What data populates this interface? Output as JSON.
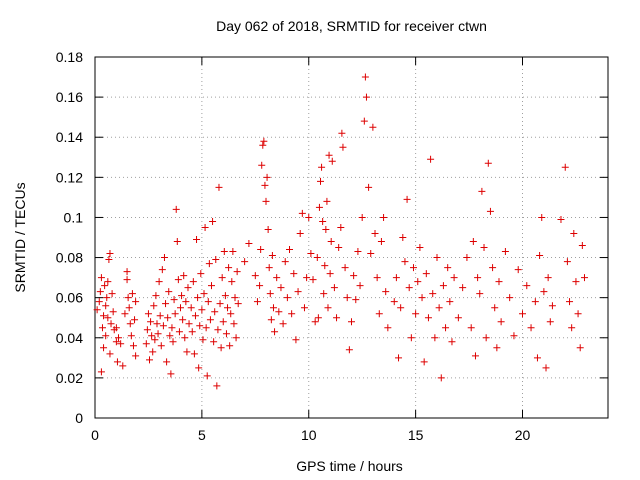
{
  "chart_data": {
    "type": "scatter",
    "title": "Day 062 of 2018, SRMTID for receiver ctwn",
    "xlabel": "GPS time / hours",
    "ylabel": "SRMTID / TECUs",
    "xlim": [
      0,
      24
    ],
    "ylim": [
      0,
      0.18
    ],
    "xticks": [
      0,
      5,
      10,
      15,
      20
    ],
    "yticks": [
      0,
      0.02,
      0.04,
      0.06,
      0.08,
      0.1,
      0.12,
      0.14,
      0.16,
      0.18
    ],
    "ytick_labels": [
      "0",
      "0.02",
      "0.04",
      "0.06",
      "0.08",
      "0.1",
      "0.12",
      "0.14",
      "0.16",
      "0.18"
    ],
    "xtick_labels": [
      "0",
      "5",
      "10",
      "15",
      "20"
    ],
    "grid": true,
    "marker": "+",
    "series": [
      {
        "name": "SRMTID",
        "color": "#dd0000",
        "points": [
          [
            0.1,
            0.054
          ],
          [
            0.2,
            0.058
          ],
          [
            0.25,
            0.063
          ],
          [
            0.3,
            0.07
          ],
          [
            0.3,
            0.023
          ],
          [
            0.35,
            0.045
          ],
          [
            0.4,
            0.051
          ],
          [
            0.4,
            0.035
          ],
          [
            0.45,
            0.066
          ],
          [
            0.5,
            0.041
          ],
          [
            0.5,
            0.056
          ],
          [
            0.55,
            0.06
          ],
          [
            0.6,
            0.05
          ],
          [
            0.6,
            0.068
          ],
          [
            0.65,
            0.079
          ],
          [
            0.7,
            0.082
          ],
          [
            0.7,
            0.032
          ],
          [
            0.75,
            0.047
          ],
          [
            0.8,
            0.062
          ],
          [
            0.85,
            0.053
          ],
          [
            0.9,
            0.044
          ],
          [
            1.0,
            0.038
          ],
          [
            1.0,
            0.045
          ],
          [
            1.05,
            0.028
          ],
          [
            1.1,
            0.04
          ],
          [
            1.2,
            0.037
          ],
          [
            1.3,
            0.026
          ],
          [
            1.4,
            0.052
          ],
          [
            1.5,
            0.069
          ],
          [
            1.5,
            0.073
          ],
          [
            1.55,
            0.06
          ],
          [
            1.6,
            0.055
          ],
          [
            1.65,
            0.047
          ],
          [
            1.7,
            0.041
          ],
          [
            1.75,
            0.062
          ],
          [
            1.8,
            0.036
          ],
          [
            1.85,
            0.049
          ],
          [
            1.9,
            0.058
          ],
          [
            1.9,
            0.031
          ],
          [
            2.4,
            0.037
          ],
          [
            2.45,
            0.044
          ],
          [
            2.5,
            0.052
          ],
          [
            2.55,
            0.029
          ],
          [
            2.6,
            0.048
          ],
          [
            2.65,
            0.041
          ],
          [
            2.7,
            0.033
          ],
          [
            2.75,
            0.056
          ],
          [
            2.8,
            0.039
          ],
          [
            2.85,
            0.061
          ],
          [
            2.9,
            0.047
          ],
          [
            2.95,
            0.042
          ],
          [
            3.0,
            0.068
          ],
          [
            3.05,
            0.051
          ],
          [
            3.1,
            0.036
          ],
          [
            3.15,
            0.074
          ],
          [
            3.2,
            0.046
          ],
          [
            3.25,
            0.08
          ],
          [
            3.3,
            0.057
          ],
          [
            3.35,
            0.028
          ],
          [
            3.4,
            0.05
          ],
          [
            3.45,
            0.063
          ],
          [
            3.5,
            0.041
          ],
          [
            3.55,
            0.022
          ],
          [
            3.6,
            0.045
          ],
          [
            3.65,
            0.038
          ],
          [
            3.7,
            0.059
          ],
          [
            3.75,
            0.052
          ],
          [
            3.8,
            0.104
          ],
          [
            3.85,
            0.088
          ],
          [
            3.9,
            0.069
          ],
          [
            3.95,
            0.043
          ],
          [
            4.0,
            0.055
          ],
          [
            4.05,
            0.061
          ],
          [
            4.1,
            0.049
          ],
          [
            4.15,
            0.071
          ],
          [
            4.2,
            0.04
          ],
          [
            4.25,
            0.058
          ],
          [
            4.3,
            0.033
          ],
          [
            4.35,
            0.065
          ],
          [
            4.4,
            0.047
          ],
          [
            4.5,
            0.055
          ],
          [
            4.55,
            0.043
          ],
          [
            4.6,
            0.068
          ],
          [
            4.65,
            0.032
          ],
          [
            4.7,
            0.051
          ],
          [
            4.75,
            0.089
          ],
          [
            4.8,
            0.06
          ],
          [
            4.85,
            0.025
          ],
          [
            4.9,
            0.046
          ],
          [
            4.95,
            0.072
          ],
          [
            5.0,
            0.054
          ],
          [
            5.05,
            0.039
          ],
          [
            5.1,
            0.062
          ],
          [
            5.15,
            0.095
          ],
          [
            5.2,
            0.045
          ],
          [
            5.25,
            0.021
          ],
          [
            5.3,
            0.058
          ],
          [
            5.35,
            0.077
          ],
          [
            5.4,
            0.049
          ],
          [
            5.45,
            0.066
          ],
          [
            5.5,
            0.098
          ],
          [
            5.55,
            0.038
          ],
          [
            5.6,
            0.053
          ],
          [
            5.65,
            0.079
          ],
          [
            5.7,
            0.016
          ],
          [
            5.75,
            0.044
          ],
          [
            5.8,
            0.115
          ],
          [
            5.85,
            0.057
          ],
          [
            5.9,
            0.035
          ],
          [
            5.95,
            0.07
          ],
          [
            6.0,
            0.048
          ],
          [
            6.05,
            0.083
          ],
          [
            6.1,
            0.061
          ],
          [
            6.15,
            0.042
          ],
          [
            6.2,
            0.055
          ],
          [
            6.25,
            0.075
          ],
          [
            6.3,
            0.036
          ],
          [
            6.35,
            0.052
          ],
          [
            6.4,
            0.068
          ],
          [
            6.45,
            0.083
          ],
          [
            6.5,
            0.047
          ],
          [
            6.55,
            0.06
          ],
          [
            6.6,
            0.04
          ],
          [
            6.65,
            0.073
          ],
          [
            6.7,
            0.057
          ],
          [
            7.0,
            0.078
          ],
          [
            7.2,
            0.087
          ],
          [
            7.5,
            0.071
          ],
          [
            7.6,
            0.058
          ],
          [
            7.7,
            0.066
          ],
          [
            7.75,
            0.084
          ],
          [
            7.8,
            0.126
          ],
          [
            7.85,
            0.136
          ],
          [
            7.9,
            0.138
          ],
          [
            7.95,
            0.116
          ],
          [
            8.0,
            0.108
          ],
          [
            8.05,
            0.12
          ],
          [
            8.1,
            0.094
          ],
          [
            8.15,
            0.075
          ],
          [
            8.2,
            0.062
          ],
          [
            8.25,
            0.049
          ],
          [
            8.3,
            0.081
          ],
          [
            8.35,
            0.055
          ],
          [
            8.4,
            0.043
          ],
          [
            8.5,
            0.07
          ],
          [
            8.6,
            0.053
          ],
          [
            8.7,
            0.065
          ],
          [
            8.8,
            0.047
          ],
          [
            8.9,
            0.078
          ],
          [
            9.0,
            0.06
          ],
          [
            9.1,
            0.084
          ],
          [
            9.2,
            0.052
          ],
          [
            9.3,
            0.072
          ],
          [
            9.4,
            0.039
          ],
          [
            9.5,
            0.063
          ],
          [
            9.6,
            0.092
          ],
          [
            9.7,
            0.102
          ],
          [
            9.8,
            0.055
          ],
          [
            9.9,
            0.07
          ],
          [
            10.0,
            0.1
          ],
          [
            10.1,
            0.082
          ],
          [
            10.2,
            0.069
          ],
          [
            10.3,
            0.048
          ],
          [
            10.4,
            0.08
          ],
          [
            10.45,
            0.05
          ],
          [
            10.5,
            0.105
          ],
          [
            10.55,
            0.118
          ],
          [
            10.6,
            0.125
          ],
          [
            10.65,
            0.098
          ],
          [
            10.7,
            0.062
          ],
          [
            10.75,
            0.076
          ],
          [
            10.8,
            0.094
          ],
          [
            10.85,
            0.108
          ],
          [
            10.9,
            0.055
          ],
          [
            10.95,
            0.131
          ],
          [
            11.0,
            0.072
          ],
          [
            11.05,
            0.088
          ],
          [
            11.1,
            0.128
          ],
          [
            11.2,
            0.065
          ],
          [
            11.3,
            0.05
          ],
          [
            11.4,
            0.085
          ],
          [
            11.5,
            0.095
          ],
          [
            11.55,
            0.142
          ],
          [
            11.6,
            0.135
          ],
          [
            11.7,
            0.075
          ],
          [
            11.8,
            0.06
          ],
          [
            11.9,
            0.034
          ],
          [
            12.0,
            0.048
          ],
          [
            12.1,
            0.071
          ],
          [
            12.2,
            0.059
          ],
          [
            12.3,
            0.083
          ],
          [
            12.4,
            0.066
          ],
          [
            12.5,
            0.1
          ],
          [
            12.6,
            0.148
          ],
          [
            12.65,
            0.17
          ],
          [
            12.7,
            0.16
          ],
          [
            12.8,
            0.115
          ],
          [
            12.9,
            0.082
          ],
          [
            13.0,
            0.145
          ],
          [
            13.1,
            0.092
          ],
          [
            13.2,
            0.07
          ],
          [
            13.3,
            0.052
          ],
          [
            13.4,
            0.088
          ],
          [
            13.5,
            0.1
          ],
          [
            13.6,
            0.063
          ],
          [
            13.7,
            0.045
          ],
          [
            14.0,
            0.058
          ],
          [
            14.1,
            0.07
          ],
          [
            14.2,
            0.03
          ],
          [
            14.3,
            0.055
          ],
          [
            14.4,
            0.09
          ],
          [
            14.5,
            0.078
          ],
          [
            14.6,
            0.109
          ],
          [
            14.7,
            0.065
          ],
          [
            14.8,
            0.04
          ],
          [
            14.9,
            0.075
          ],
          [
            15.0,
            0.052
          ],
          [
            15.1,
            0.068
          ],
          [
            15.2,
            0.085
          ],
          [
            15.3,
            0.06
          ],
          [
            15.4,
            0.028
          ],
          [
            15.5,
            0.072
          ],
          [
            15.6,
            0.05
          ],
          [
            15.7,
            0.129
          ],
          [
            15.8,
            0.062
          ],
          [
            15.9,
            0.04
          ],
          [
            16.0,
            0.08
          ],
          [
            16.1,
            0.055
          ],
          [
            16.2,
            0.02
          ],
          [
            16.3,
            0.066
          ],
          [
            16.4,
            0.045
          ],
          [
            16.5,
            0.075
          ],
          [
            16.6,
            0.058
          ],
          [
            16.7,
            0.038
          ],
          [
            16.8,
            0.07
          ],
          [
            17.0,
            0.05
          ],
          [
            17.2,
            0.065
          ],
          [
            17.4,
            0.08
          ],
          [
            17.6,
            0.045
          ],
          [
            17.7,
            0.088
          ],
          [
            17.8,
            0.031
          ],
          [
            17.9,
            0.07
          ],
          [
            18.0,
            0.062
          ],
          [
            18.1,
            0.113
          ],
          [
            18.2,
            0.085
          ],
          [
            18.3,
            0.04
          ],
          [
            18.4,
            0.127
          ],
          [
            18.5,
            0.103
          ],
          [
            18.6,
            0.075
          ],
          [
            18.7,
            0.055
          ],
          [
            18.8,
            0.035
          ],
          [
            18.9,
            0.068
          ],
          [
            19.0,
            0.048
          ],
          [
            19.2,
            0.083
          ],
          [
            19.4,
            0.06
          ],
          [
            19.6,
            0.041
          ],
          [
            19.8,
            0.074
          ],
          [
            20.0,
            0.052
          ],
          [
            20.2,
            0.066
          ],
          [
            20.4,
            0.045
          ],
          [
            20.6,
            0.058
          ],
          [
            20.7,
            0.03
          ],
          [
            20.8,
            0.081
          ],
          [
            20.9,
            0.1
          ],
          [
            21.0,
            0.063
          ],
          [
            21.1,
            0.025
          ],
          [
            21.2,
            0.07
          ],
          [
            21.3,
            0.048
          ],
          [
            21.4,
            0.056
          ],
          [
            21.8,
            0.099
          ],
          [
            22.0,
            0.125
          ],
          [
            22.1,
            0.078
          ],
          [
            22.2,
            0.058
          ],
          [
            22.3,
            0.045
          ],
          [
            22.4,
            0.092
          ],
          [
            22.5,
            0.068
          ],
          [
            22.6,
            0.052
          ],
          [
            22.7,
            0.035
          ],
          [
            22.8,
            0.086
          ],
          [
            22.9,
            0.07
          ]
        ]
      }
    ]
  }
}
